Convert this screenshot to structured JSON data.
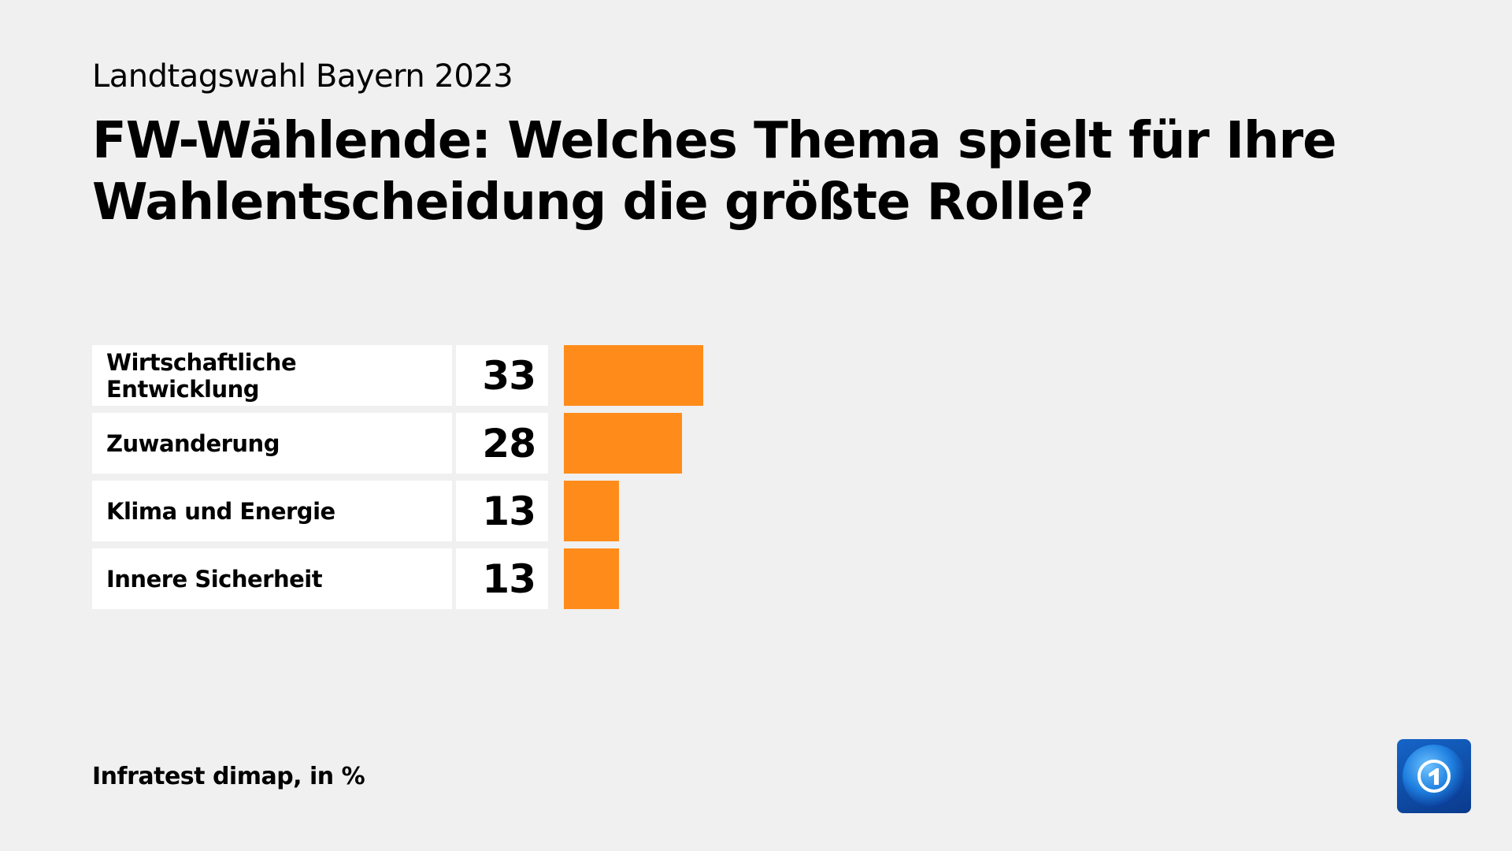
{
  "header": {
    "subtitle": "Landtagswahl Bayern 2023",
    "title": "FW-Wählende: Welches Thema spielt für Ihre Wahlentscheidung die größte Rolle?"
  },
  "chart_data": {
    "type": "bar",
    "orientation": "horizontal",
    "categories": [
      "Wirtschaftliche Entwicklung",
      "Zuwanderung",
      "Klima und Energie",
      "Innere Sicherheit"
    ],
    "values": [
      33,
      28,
      13,
      13
    ],
    "unit": "%",
    "bar_color": "#ff8c1a"
  },
  "footer": {
    "source": "Infratest dimap, in %"
  },
  "logo": {
    "name": "tagesschau-logo-icon"
  }
}
